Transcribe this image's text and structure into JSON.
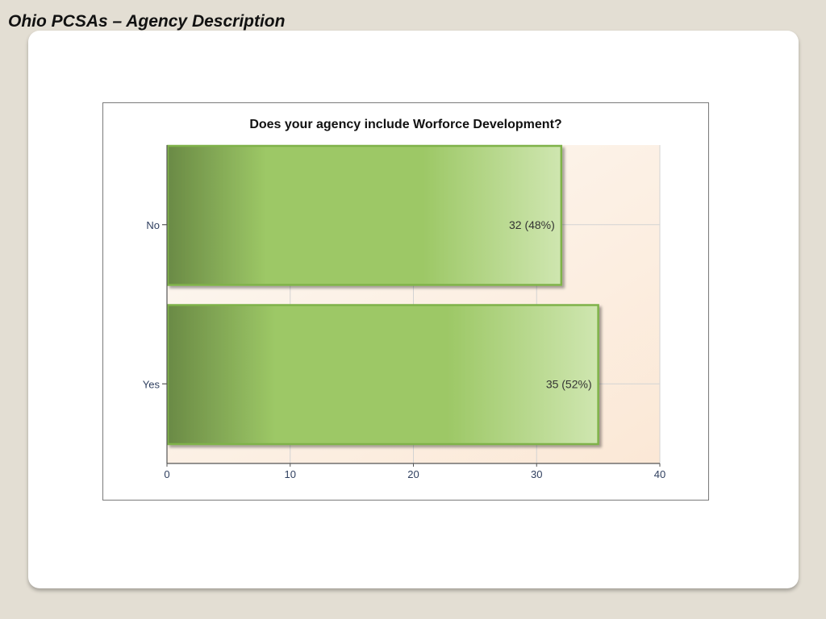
{
  "slide": {
    "title": "Ohio PCSAs – Agency Description"
  },
  "chart_data": {
    "type": "bar",
    "orientation": "horizontal",
    "title": "Does your agency include Worforce Development?",
    "categories": [
      "No",
      "Yes"
    ],
    "values": [
      32,
      35
    ],
    "data_labels": [
      "32 (48%)",
      "35 (52%)"
    ],
    "xlim": [
      0,
      40
    ],
    "xticks": [
      "0",
      "10",
      "20",
      "30",
      "40"
    ],
    "xlabel": "",
    "ylabel": "",
    "grid": true,
    "legend": "none",
    "colors": {
      "bar_dark": "#6a8a45",
      "bar_mid": "#9dc866",
      "bar_light": "#cfe6b0",
      "bar_border": "#7fb24a",
      "plot_bg_top": "#fdf9f4",
      "plot_bg_bottom": "#fbe8d6",
      "grid": "#d3d3d3",
      "axis": "#555555",
      "label_text": "#333333"
    }
  }
}
